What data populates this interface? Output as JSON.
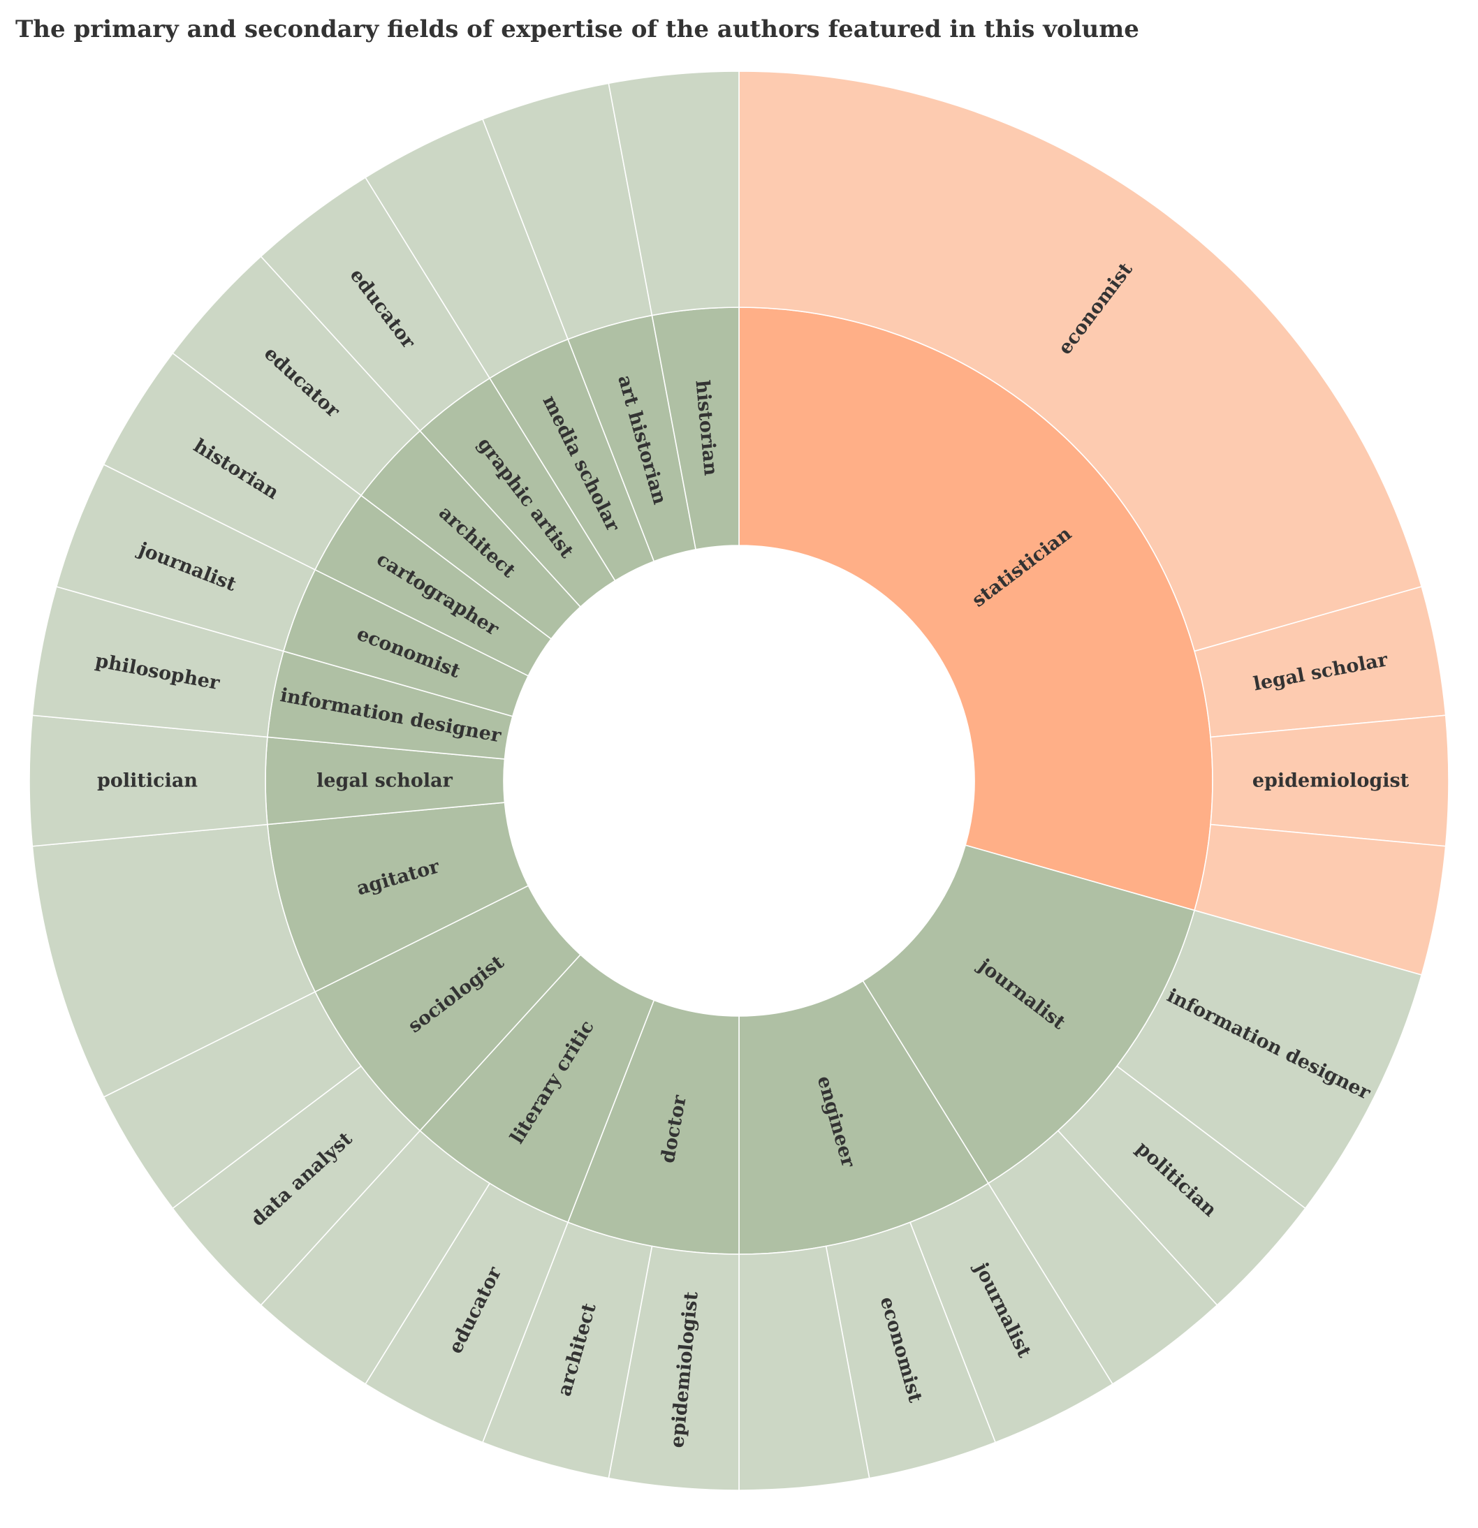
{
  "chart_data": {
    "type": "sunburst",
    "title": "The primary and secondary fields of expertise of the authors featured in this volume",
    "colors": {
      "highlight_inner": "#ffaf87",
      "highlight_outer": "#fdcbb0",
      "other_inner": "#afc0a4",
      "other_outer": "#ccd7c5",
      "label": "#333333"
    },
    "hierarchy": [
      {
        "label": "statistician",
        "highlight": true,
        "children": [
          {
            "label": "economist",
            "value": 7
          },
          {
            "label": "legal scholar",
            "value": 1
          },
          {
            "label": "epidemiologist",
            "value": 1
          },
          {
            "label": "",
            "value": 1
          }
        ]
      },
      {
        "label": "journalist",
        "children": [
          {
            "label": "information designer",
            "value": 2
          },
          {
            "label": "politician",
            "value": 1
          },
          {
            "label": "",
            "value": 1
          }
        ]
      },
      {
        "label": "engineer",
        "children": [
          {
            "label": "journalist",
            "value": 1
          },
          {
            "label": "economist",
            "value": 1
          },
          {
            "label": "",
            "value": 1
          }
        ]
      },
      {
        "label": "doctor",
        "children": [
          {
            "label": "epidemiologist",
            "value": 1
          },
          {
            "label": "architect",
            "value": 1
          }
        ]
      },
      {
        "label": "literary critic",
        "children": [
          {
            "label": "educator",
            "value": 1
          },
          {
            "label": "",
            "value": 1
          }
        ]
      },
      {
        "label": "sociologist",
        "children": [
          {
            "label": "data analyst",
            "value": 1
          },
          {
            "label": "",
            "value": 1
          }
        ]
      },
      {
        "label": "agitator",
        "children": [
          {
            "label": "",
            "value": 2
          }
        ]
      },
      {
        "label": "legal scholar",
        "children": [
          {
            "label": "politician",
            "value": 1
          }
        ]
      },
      {
        "label": "information designer",
        "children": [
          {
            "label": "philosopher",
            "value": 1
          }
        ]
      },
      {
        "label": "economist",
        "children": [
          {
            "label": "journalist",
            "value": 1
          }
        ]
      },
      {
        "label": "cartographer",
        "children": [
          {
            "label": "historian",
            "value": 1
          }
        ]
      },
      {
        "label": "architect",
        "children": [
          {
            "label": "educator",
            "value": 1
          }
        ]
      },
      {
        "label": "graphic artist",
        "children": [
          {
            "label": "educator",
            "value": 1
          }
        ]
      },
      {
        "label": "media scholar",
        "children": [
          {
            "label": "",
            "value": 1
          }
        ]
      },
      {
        "label": "art historian",
        "children": [
          {
            "label": "",
            "value": 1
          }
        ]
      },
      {
        "label": "historian",
        "children": [
          {
            "label": "",
            "value": 1
          }
        ]
      }
    ]
  }
}
